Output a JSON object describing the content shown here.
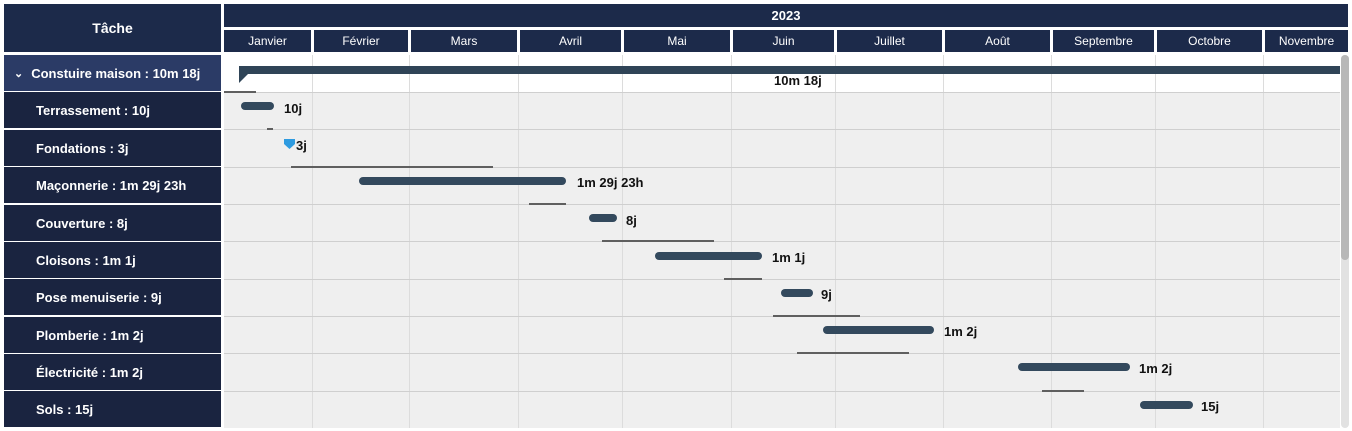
{
  "header": {
    "task_col": "Tâche",
    "year": "2023",
    "months": [
      "Janvier",
      "Février",
      "Mars",
      "Avril",
      "Mai",
      "Juin",
      "Juillet",
      "Août",
      "Septembre",
      "Octobre",
      "Novembre"
    ]
  },
  "summary": {
    "label": "Constuire maison : 10m 18j",
    "bar_label": "10m 18j"
  },
  "tasks": [
    {
      "label": "Terrassement : 10j",
      "bar_label": "10j"
    },
    {
      "label": "Fondations : 3j",
      "bar_label": "3j"
    },
    {
      "label": "Maçonnerie : 1m 29j 23h",
      "bar_label": "1m 29j 23h"
    },
    {
      "label": "Couverture : 8j",
      "bar_label": "8j"
    },
    {
      "label": "Cloisons : 1m 1j",
      "bar_label": "1m 1j"
    },
    {
      "label": "Pose menuiserie : 9j",
      "bar_label": "9j"
    },
    {
      "label": "Plomberie : 1m 2j",
      "bar_label": "1m 2j"
    },
    {
      "label": "Électricité : 1m 2j",
      "bar_label": "1m 2j"
    },
    {
      "label": "Sols : 15j",
      "bar_label": "15j"
    }
  ],
  "colors": {
    "header_bg": "#1c2a4a",
    "bar": "#33495d",
    "milestone": "#2e9be0"
  }
}
